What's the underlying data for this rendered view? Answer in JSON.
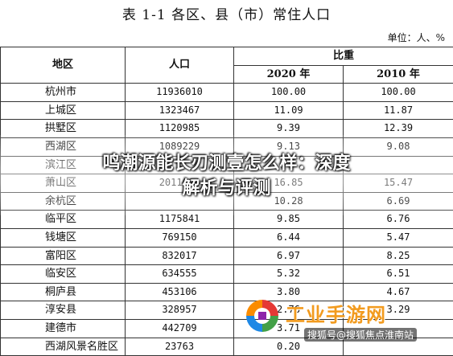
{
  "title": "表 1-1  各区、县（市）常住人口",
  "unit": "单位：人、%",
  "headers": {
    "region": "地区",
    "population": "人口",
    "ratio": "比重",
    "y2020": "2020 年",
    "y2010": "2010 年"
  },
  "rows": [
    {
      "region": "杭州市",
      "population": "11936010",
      "r2020": "100.00",
      "r2010": "100.00"
    },
    {
      "region": "上城区",
      "population": "1323467",
      "r2020": "11.09",
      "r2010": "11.87"
    },
    {
      "region": "拱墅区",
      "population": "1120985",
      "r2020": "9.39",
      "r2010": "12.39"
    },
    {
      "region": "西湖区",
      "population": "1089229",
      "r2020": "9.13",
      "r2010": "9.08"
    },
    {
      "region": "滨江区",
      "population": "",
      "r2020": "",
      "r2010": ""
    },
    {
      "region": "萧山区",
      "population": "2011694",
      "r2020": "16.85",
      "r2010": "15.47"
    },
    {
      "region": "余杭区",
      "population": "",
      "r2020": "10.28",
      "r2010": "6.69"
    },
    {
      "region": "临平区",
      "population": "1175841",
      "r2020": "9.85",
      "r2010": "6.76"
    },
    {
      "region": "钱塘区",
      "population": "769150",
      "r2020": "6.44",
      "r2010": "5.47"
    },
    {
      "region": "富阳区",
      "population": "832017",
      "r2020": "6.97",
      "r2010": "8.25"
    },
    {
      "region": "临安区",
      "population": "634555",
      "r2020": "5.32",
      "r2010": "6.51"
    },
    {
      "region": "桐庐县",
      "population": "453106",
      "r2020": "3.80",
      "r2010": "4.67"
    },
    {
      "region": "淳安县",
      "population": "328957",
      "r2020": "2.76",
      "r2010": "3.29"
    },
    {
      "region": "建德市",
      "population": "442709",
      "r2020": "3.71",
      "r2010": ""
    },
    {
      "region": "西湖风景名胜区",
      "population": "23763",
      "r2020": "0.20",
      "r2010": ""
    }
  ],
  "overlay": {
    "line1": "鸣潮源能长刃测壹怎么样：深度",
    "line2": "解析与评测"
  },
  "watermark": {
    "brand": "工业手游网",
    "sub": "搜狐号@搜狐焦点淮南站"
  }
}
